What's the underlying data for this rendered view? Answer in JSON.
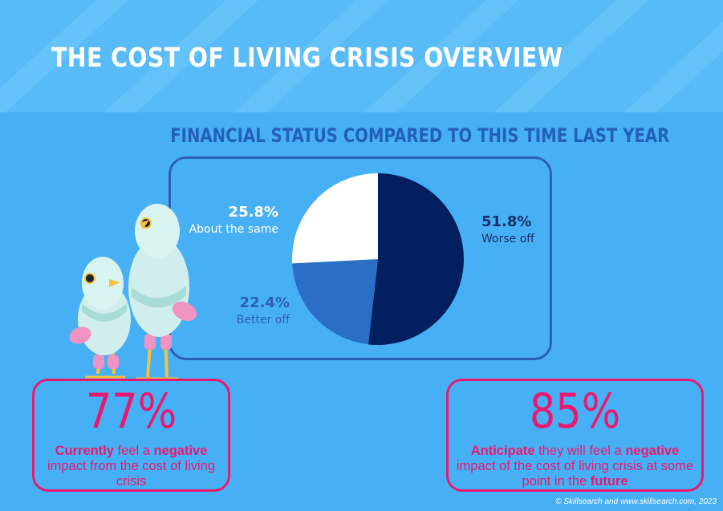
{
  "header": {
    "title": "THE COST OF LIVING CRISIS OVERVIEW"
  },
  "chart_data": {
    "type": "pie",
    "title": "FINANCIAL STATUS COMPARED TO THIS TIME LAST YEAR",
    "slices": [
      {
        "name": "Worse off",
        "value": 51.8,
        "value_label": "51.8%",
        "color": "#02205f"
      },
      {
        "name": "Better off",
        "value": 22.4,
        "value_label": "22.4%",
        "color": "#2a6fc5"
      },
      {
        "name": "About the same",
        "value": 25.8,
        "value_label": "25.8%",
        "color": "#ffffff"
      }
    ],
    "label_colors": {
      "Worse off": "#14306a",
      "Better off": "#2a60b4",
      "About the same": "#ffffff"
    }
  },
  "stats": [
    {
      "value": "77%",
      "desc": [
        {
          "text": "Currently",
          "bold": true
        },
        {
          "text": " feel a ",
          "bold": false
        },
        {
          "text": "negative",
          "bold": true
        },
        {
          "text": " impact from the cost of living crisis",
          "bold": false
        }
      ]
    },
    {
      "value": "85%",
      "desc": [
        {
          "text": "Anticipate",
          "bold": true
        },
        {
          "text": " they will feel a ",
          "bold": false
        },
        {
          "text": "negative",
          "bold": true
        },
        {
          "text": " impact of the cost of living crisis at some point in the ",
          "bold": false
        },
        {
          "text": "future",
          "bold": true
        }
      ]
    }
  ],
  "footer": {
    "credit": "© Skillsearch and www.skillsearch.com, 2023"
  },
  "colors": {
    "background": "#47b0f4",
    "accent_pink": "#e8196f",
    "accent_blue": "#2a60b4"
  },
  "illustration": {
    "name": "pigeon-mascots"
  }
}
